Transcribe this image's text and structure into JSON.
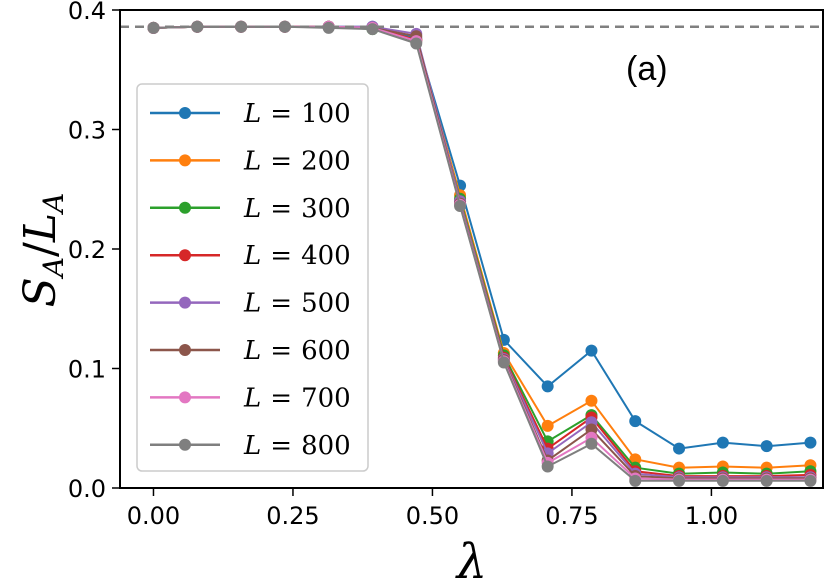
{
  "chart_data": {
    "type": "line",
    "panel_label": "(a)",
    "xlabel": "λ",
    "ylabel": "S_A/L_A",
    "ylabel_parts": {
      "s": "S",
      "sub1": "A",
      "slash": "/",
      "l": "L",
      "sub2": "A"
    },
    "xlim": [
      -0.06,
      1.2
    ],
    "ylim": [
      0.0,
      0.4
    ],
    "xticks": [
      0.0,
      0.25,
      0.5,
      0.75,
      1.0
    ],
    "xtick_labels": [
      "0.00",
      "0.25",
      "0.50",
      "0.75",
      "1.00"
    ],
    "yticks": [
      0.0,
      0.1,
      0.2,
      0.3,
      0.4
    ],
    "ytick_labels": [
      "0.0",
      "0.1",
      "0.2",
      "0.3",
      "0.4"
    ],
    "reference_line": {
      "y": 0.386,
      "style": "dashed",
      "color": "#808080"
    },
    "legend_position": "left",
    "x": [
      0.0,
      0.0785,
      0.157,
      0.2355,
      0.314,
      0.3925,
      0.471,
      0.5495,
      0.628,
      0.7065,
      0.785,
      0.8635,
      0.942,
      1.0205,
      1.099,
      1.1775
    ],
    "series": [
      {
        "name": "L = 100",
        "label_var": "L",
        "label_eq": "=",
        "label_num": "100",
        "color": "#1f77b4",
        "values": [
          0.385,
          0.386,
          0.386,
          0.386,
          0.386,
          0.386,
          0.376,
          0.253,
          0.124,
          0.085,
          0.115,
          0.056,
          0.033,
          0.038,
          0.035,
          0.038
        ]
      },
      {
        "name": "L = 200",
        "label_var": "L",
        "label_eq": "=",
        "label_num": "200",
        "color": "#ff7f0e",
        "values": [
          0.385,
          0.386,
          0.386,
          0.386,
          0.386,
          0.385,
          0.375,
          0.245,
          0.113,
          0.052,
          0.073,
          0.024,
          0.017,
          0.018,
          0.017,
          0.019
        ]
      },
      {
        "name": "L = 300",
        "label_var": "L",
        "label_eq": "=",
        "label_num": "300",
        "color": "#2ca02c",
        "values": [
          0.385,
          0.386,
          0.386,
          0.386,
          0.386,
          0.384,
          0.374,
          0.242,
          0.111,
          0.039,
          0.061,
          0.017,
          0.012,
          0.013,
          0.012,
          0.014
        ]
      },
      {
        "name": "L = 400",
        "label_var": "L",
        "label_eq": "=",
        "label_num": "400",
        "color": "#d62728",
        "values": [
          0.385,
          0.386,
          0.386,
          0.386,
          0.386,
          0.385,
          0.375,
          0.24,
          0.109,
          0.033,
          0.059,
          0.014,
          0.01,
          0.01,
          0.01,
          0.011
        ]
      },
      {
        "name": "L = 500",
        "label_var": "L",
        "label_eq": "=",
        "label_num": "500",
        "color": "#9467bd",
        "values": [
          0.385,
          0.386,
          0.386,
          0.386,
          0.386,
          0.386,
          0.38,
          0.24,
          0.108,
          0.029,
          0.055,
          0.012,
          0.009,
          0.009,
          0.009,
          0.009
        ]
      },
      {
        "name": "L = 600",
        "label_var": "L",
        "label_eq": "=",
        "label_num": "600",
        "color": "#8c564b",
        "values": [
          0.385,
          0.386,
          0.386,
          0.386,
          0.386,
          0.385,
          0.378,
          0.238,
          0.107,
          0.023,
          0.049,
          0.01,
          0.008,
          0.008,
          0.008,
          0.008
        ]
      },
      {
        "name": "L = 700",
        "label_var": "L",
        "label_eq": "=",
        "label_num": "700",
        "color": "#e377c2",
        "values": [
          0.385,
          0.386,
          0.386,
          0.386,
          0.386,
          0.385,
          0.374,
          0.237,
          0.106,
          0.021,
          0.042,
          0.008,
          0.007,
          0.007,
          0.007,
          0.007
        ]
      },
      {
        "name": "L = 800",
        "label_var": "L",
        "label_eq": "=",
        "label_num": "800",
        "color": "#7f7f7f",
        "values": [
          0.385,
          0.386,
          0.386,
          0.386,
          0.385,
          0.384,
          0.372,
          0.236,
          0.105,
          0.018,
          0.037,
          0.006,
          0.006,
          0.006,
          0.006,
          0.006
        ]
      }
    ]
  }
}
